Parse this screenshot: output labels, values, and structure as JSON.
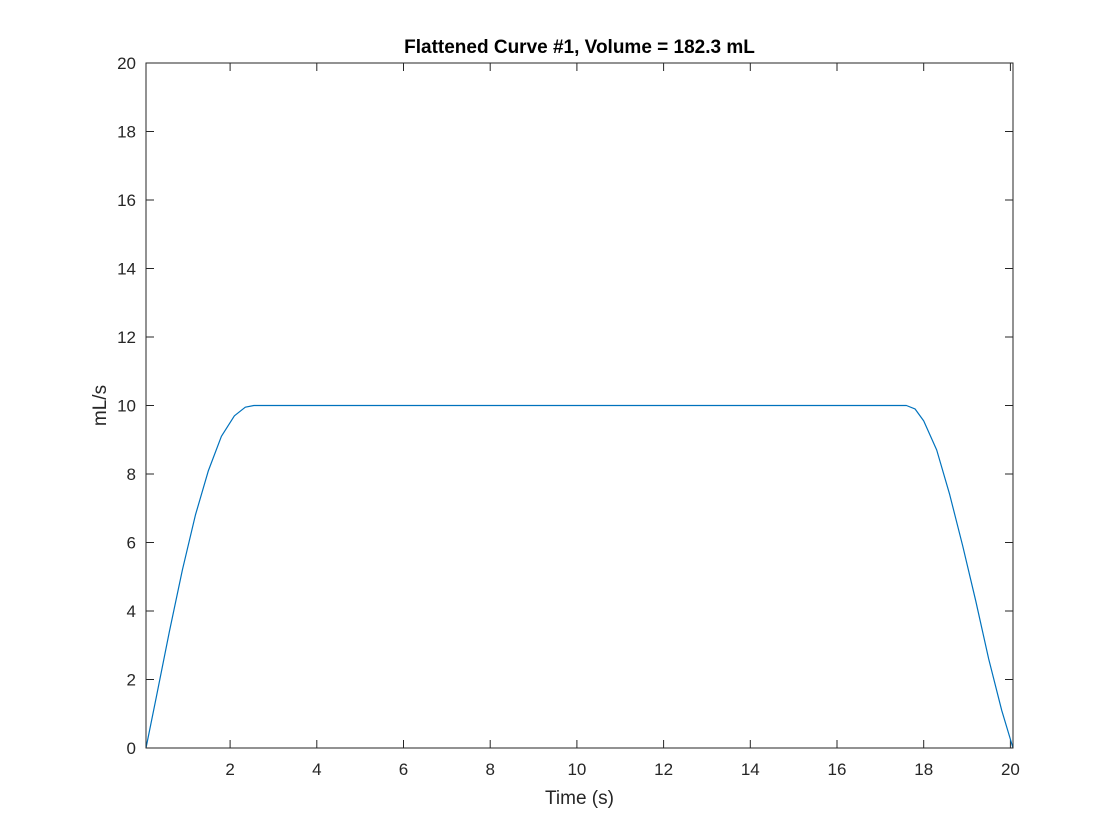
{
  "chart_data": {
    "type": "line",
    "title": "Flattened Curve #1, Volume = 182.3 mL",
    "xlabel": "Time (s)",
    "ylabel": "mL/s",
    "xlim": [
      0.06,
      20.06
    ],
    "ylim": [
      0,
      20
    ],
    "xticks": [
      2,
      4,
      6,
      8,
      10,
      12,
      14,
      16,
      18,
      20
    ],
    "yticks": [
      0,
      2,
      4,
      6,
      8,
      10,
      12,
      14,
      16,
      18,
      20
    ],
    "grid": false,
    "series": [
      {
        "color": "#0072BD",
        "x": [
          0.06,
          0.3,
          0.6,
          0.9,
          1.2,
          1.5,
          1.8,
          2.1,
          2.35,
          2.55,
          3,
          5,
          8,
          11,
          14,
          17,
          17.6,
          17.8,
          18.0,
          18.3,
          18.6,
          18.9,
          19.2,
          19.5,
          19.8,
          20.06
        ],
        "y": [
          0,
          1.5,
          3.4,
          5.2,
          6.8,
          8.1,
          9.1,
          9.7,
          9.95,
          10,
          10,
          10,
          10,
          10,
          10,
          10,
          10,
          9.9,
          9.55,
          8.7,
          7.4,
          5.9,
          4.3,
          2.6,
          1.1,
          0
        ]
      }
    ]
  }
}
